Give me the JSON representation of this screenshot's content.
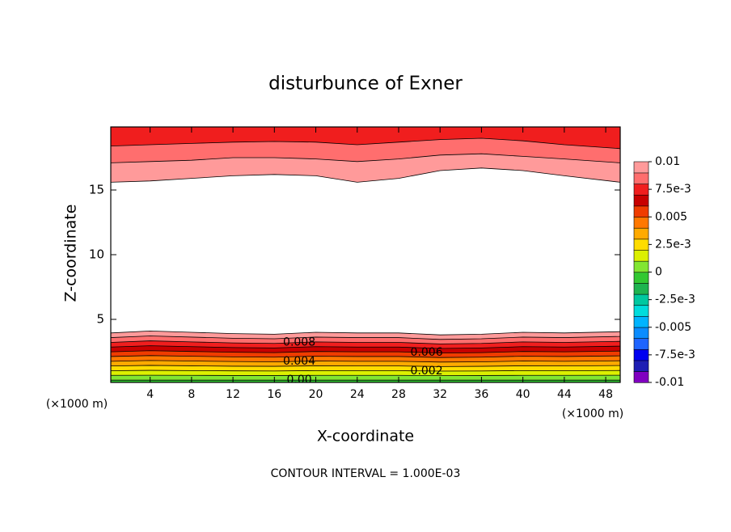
{
  "chart_data": {
    "type": "contour",
    "title": "disturbunce of Exner",
    "xlabel": "X-coordinate",
    "ylabel": "Z-coordinate",
    "xunit": "(×1000 m)",
    "yunit": "(×1000 m)",
    "footer": "CONTOUR INTERVAL = 1.000E-03",
    "xlim": [
      0.2,
      49.4
    ],
    "ylim": [
      0.125,
      19.875
    ],
    "xticks": [
      4,
      8,
      12,
      16,
      20,
      24,
      28,
      32,
      36,
      40,
      44,
      48
    ],
    "yticks": [
      5,
      10,
      15
    ],
    "x": [
      0.2,
      4,
      8,
      12,
      16,
      20,
      24,
      28,
      32,
      36,
      40,
      44,
      49.4
    ],
    "contours": {
      "lower": [
        {
          "level": 0,
          "label": "0.00",
          "z": [
            0.3,
            0.3,
            0.3,
            0.3,
            0.3,
            0.3,
            0.3,
            0.3,
            0.3,
            0.3,
            0.3,
            0.3,
            0.3
          ]
        },
        {
          "level": 0.001,
          "z": [
            0.67,
            0.68,
            0.67,
            0.66,
            0.66,
            0.67,
            0.67,
            0.67,
            0.65,
            0.66,
            0.67,
            0.67,
            0.68
          ]
        },
        {
          "level": 0.002,
          "label": "0.002",
          "z": [
            1.03,
            1.06,
            1.04,
            1.02,
            1.01,
            1.04,
            1.03,
            1.03,
            1.0,
            1.01,
            1.04,
            1.03,
            1.05
          ]
        },
        {
          "level": 0.003,
          "z": [
            1.4,
            1.44,
            1.41,
            1.38,
            1.37,
            1.41,
            1.4,
            1.4,
            1.35,
            1.37,
            1.41,
            1.4,
            1.43
          ]
        },
        {
          "level": 0.004,
          "label": "0.004",
          "z": [
            1.76,
            1.82,
            1.78,
            1.74,
            1.72,
            1.78,
            1.76,
            1.76,
            1.7,
            1.72,
            1.78,
            1.76,
            1.8
          ]
        },
        {
          "level": 0.005,
          "z": [
            2.13,
            2.2,
            2.15,
            2.1,
            2.08,
            2.15,
            2.13,
            2.13,
            2.05,
            2.08,
            2.15,
            2.13,
            2.18
          ]
        },
        {
          "level": 0.006,
          "label": "0.006",
          "z": [
            2.49,
            2.58,
            2.52,
            2.46,
            2.43,
            2.52,
            2.49,
            2.49,
            2.4,
            2.43,
            2.52,
            2.49,
            2.55
          ]
        },
        {
          "level": 0.007,
          "z": [
            2.86,
            2.96,
            2.89,
            2.82,
            2.79,
            2.89,
            2.86,
            2.86,
            2.75,
            2.79,
            2.89,
            2.86,
            2.93
          ]
        },
        {
          "level": 0.008,
          "label": "0.008",
          "z": [
            3.22,
            3.34,
            3.26,
            3.18,
            3.14,
            3.26,
            3.22,
            3.22,
            3.1,
            3.14,
            3.26,
            3.22,
            3.3
          ]
        },
        {
          "level": 0.009,
          "z": [
            3.59,
            3.72,
            3.63,
            3.54,
            3.5,
            3.63,
            3.59,
            3.59,
            3.45,
            3.5,
            3.63,
            3.59,
            3.68
          ]
        },
        {
          "level": 0.01,
          "z": [
            3.95,
            4.1,
            4.0,
            3.9,
            3.85,
            4.0,
            3.95,
            3.95,
            3.8,
            3.85,
            4.0,
            3.95,
            4.05
          ]
        }
      ],
      "upper": [
        {
          "level": 0.01,
          "z": [
            15.6,
            15.7,
            15.9,
            16.1,
            16.2,
            16.1,
            15.6,
            15.9,
            16.5,
            16.7,
            16.5,
            16.1,
            15.6
          ]
        },
        {
          "level": 0.009,
          "z": [
            17.1,
            17.2,
            17.3,
            17.5,
            17.5,
            17.4,
            17.2,
            17.4,
            17.7,
            17.8,
            17.6,
            17.4,
            17.1
          ]
        },
        {
          "level": 0.008,
          "z": [
            18.4,
            18.5,
            18.6,
            18.7,
            18.75,
            18.7,
            18.5,
            18.7,
            18.9,
            19.0,
            18.8,
            18.5,
            18.2
          ]
        }
      ]
    },
    "colorbar": {
      "clim": [
        -0.01,
        0.01
      ],
      "colors": [
        "#8000c0",
        "#1e1eb4",
        "#0000f0",
        "#1e64ff",
        "#0a8cff",
        "#00b4ff",
        "#00dcdc",
        "#00c8a0",
        "#1eb450",
        "#32c832",
        "#82e632",
        "#dcf000",
        "#ffdc00",
        "#ffaa00",
        "#ff7800",
        "#f03c00",
        "#c80000",
        "#f01e1e",
        "#ff6e6e",
        "#ff9a9a"
      ],
      "ticks": [
        0.01,
        {
          "value": 0.0075,
          "label": "7.5e-3"
        },
        0.005,
        {
          "value": 0.0025,
          "label": "2.5e-3"
        },
        0,
        {
          "value": -0.0025,
          "label": "-2.5e-3"
        },
        -0.005,
        {
          "value": -0.0075,
          "label": "-7.5e-3"
        },
        -0.01
      ]
    }
  }
}
